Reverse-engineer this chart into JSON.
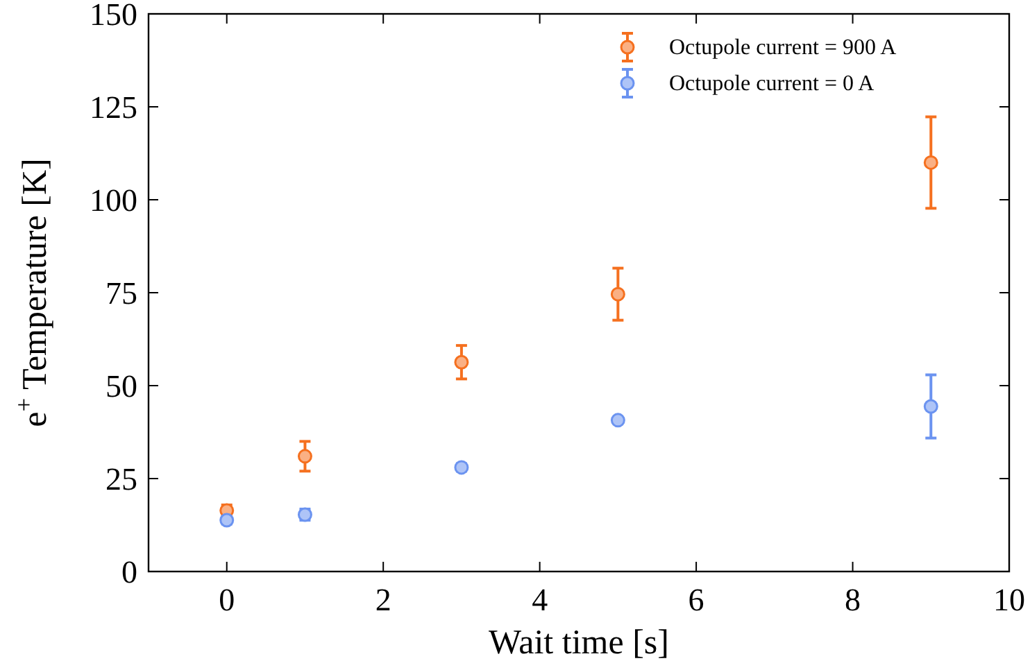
{
  "chart_data": {
    "type": "scatter",
    "xlabel": "Wait time [s]",
    "ylabel": "e$^{+}$ Temperature [K]",
    "xlim": [
      -1,
      10
    ],
    "xticks": [
      0,
      2,
      4,
      6,
      8,
      10
    ],
    "ylim": [
      0,
      150
    ],
    "yticks": [
      0,
      25,
      50,
      75,
      100,
      125,
      150
    ],
    "marker": "circle",
    "grid": false,
    "legend": "top right",
    "series": [
      {
        "name": "Octupole current = 900 A",
        "color": "#f5701f",
        "x": [
          0,
          1,
          3,
          5,
          9
        ],
        "values": [
          16.4,
          31,
          56.3,
          74.6,
          110
        ],
        "errors": [
          1.5,
          4,
          4.5,
          7,
          12.3
        ]
      },
      {
        "name": "Octupole current = 0 A",
        "color": "#6b93f0",
        "x": [
          0,
          1,
          3,
          5,
          9
        ],
        "values": [
          13.8,
          15.3,
          28,
          40.7,
          44.4
        ],
        "errors": [
          1,
          1.5,
          1,
          0.5,
          8.5
        ]
      }
    ]
  }
}
